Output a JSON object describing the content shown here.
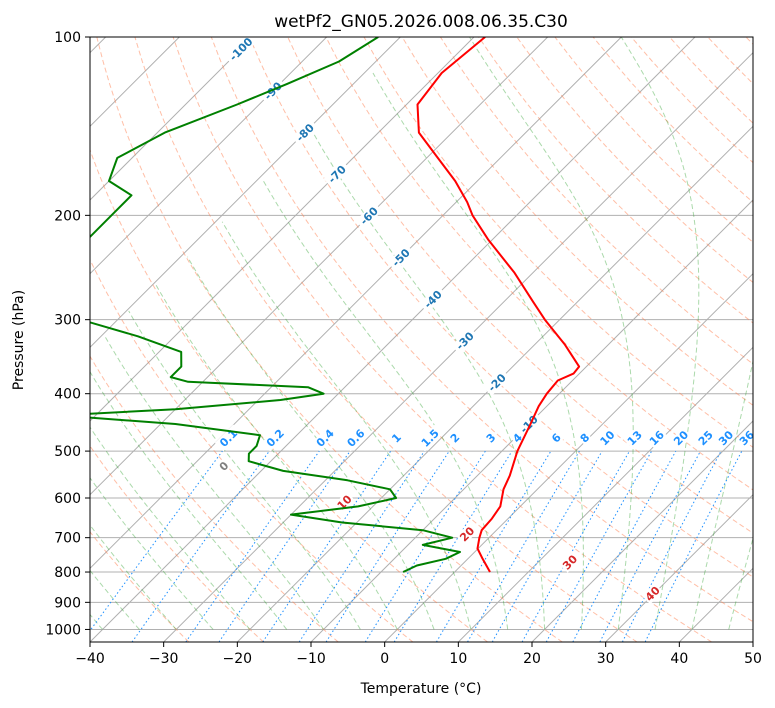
{
  "chart_data": {
    "type": "line",
    "title": "wetPf2_GN05.2026.008.06.35.C30",
    "xlabel": "Temperature (°C)",
    "ylabel": "Pressure (hPa)",
    "xlim": [
      -40,
      50
    ],
    "ylim": [
      1050,
      100
    ],
    "yscale": "log",
    "skew_degrees": 45,
    "grid": true,
    "x_ticks": [
      "-40",
      "-30",
      "-20",
      "-10",
      "0",
      "10",
      "20",
      "30",
      "40",
      "50"
    ],
    "y_ticks": [
      "100",
      "200",
      "300",
      "400",
      "500",
      "600",
      "700",
      "800",
      "900",
      "1000"
    ],
    "dry_adiabat_labels": [
      "-100",
      "-90",
      "-80",
      "-70",
      "-60",
      "-50",
      "-40",
      "-30",
      "-20",
      "-10"
    ],
    "moist_adiabat_labels": [
      "0",
      "10",
      "20",
      "30",
      "40"
    ],
    "mixing_ratio_labels": [
      "0.1",
      "0.2",
      "0.4",
      "0.6",
      "1",
      "1.5",
      "2",
      "3",
      "4",
      "6",
      "8",
      "10",
      "13",
      "16",
      "20",
      "25",
      "30",
      "36"
    ],
    "colors": {
      "temperature": "#ff0000",
      "dewpoint": "#008000",
      "dry_adiabat": "#ff7f50",
      "moist_adiabat": "#2ca02c",
      "mixing_ratio": "#1e90ff",
      "dry_label": "#1f77b4",
      "moist_label": "#d62728",
      "grid": "#b0b0b0"
    },
    "series": [
      {
        "key": "temperature",
        "p": [
          100,
          115,
          130,
          145,
          160,
          175,
          190,
          200,
          220,
          250,
          280,
          300,
          330,
          360,
          370,
          380,
          400,
          420,
          450,
          500,
          550,
          580,
          620,
          650,
          680,
          700,
          730,
          760,
          800
        ],
        "t": [
          -68.5,
          -69.5,
          -68.5,
          -64.5,
          -58.5,
          -53.0,
          -48.5,
          -46.0,
          -40.5,
          -32.5,
          -26.0,
          -22.0,
          -16.0,
          -11.0,
          -10.8,
          -12.0,
          -11.7,
          -11.1,
          -9.8,
          -7.9,
          -5.6,
          -4.6,
          -2.7,
          -2.2,
          -2.0,
          -1.3,
          -0.1,
          2.0,
          4.8
        ]
      },
      {
        "key": "dewpoint",
        "p": [
          100,
          110,
          120,
          130,
          145,
          160,
          175,
          185,
          200,
          220,
          240,
          260,
          280,
          300,
          320,
          340,
          360,
          375,
          382,
          390,
          400,
          410,
          425,
          435,
          450,
          470,
          490,
          505,
          520,
          540,
          560,
          580,
          600,
          620,
          640,
          660,
          680,
          700,
          720,
          740,
          760,
          780,
          800
        ],
        "t": [
          -83,
          -85,
          -89,
          -93,
          -99,
          -102,
          -100,
          -95,
          -95,
          -95,
          -95,
          -92,
          -88,
          -85,
          -75,
          -67,
          -65,
          -65,
          -62,
          -45,
          -42,
          -47,
          -60,
          -75,
          -58,
          -45,
          -44,
          -44,
          -43,
          -37,
          -27,
          -20,
          -18,
          -22,
          -30,
          -22,
          -10,
          -5,
          -8,
          -2,
          -3,
          -6,
          -7
        ]
      }
    ]
  }
}
